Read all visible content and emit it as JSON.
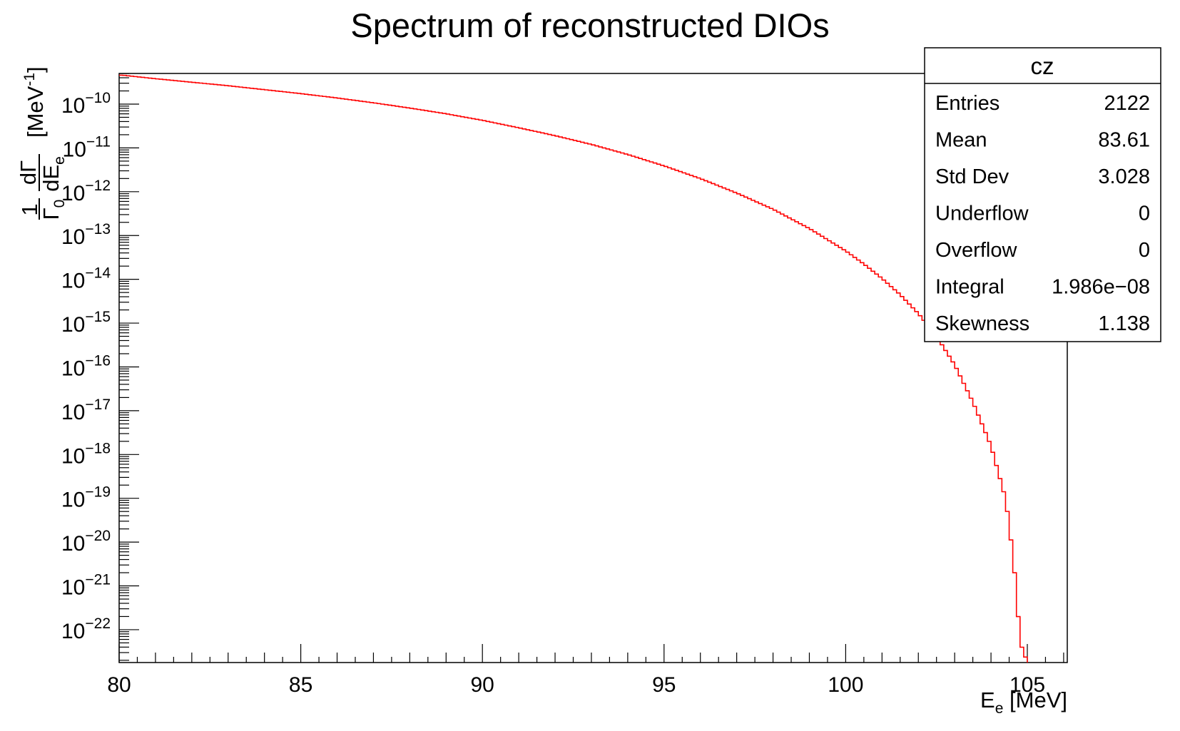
{
  "chart_data": {
    "type": "histogram",
    "title": "Spectrum of reconstructed  DIOs",
    "xlabel": {
      "main": "E",
      "sub": "e",
      "unit": " [MeV]"
    },
    "ylabel": {
      "frac_num": "1",
      "frac_den": "Γ",
      "frac_den_sub": "0",
      "deriv_num": "dΓ",
      "deriv_den": "dE",
      "deriv_den_sub": "e",
      "unit_open": "[MeV",
      "unit_sup": "-1",
      "unit_close": "]"
    },
    "xlim": [
      80,
      106.1
    ],
    "ylim_log10": [
      -22.75,
      -9.3
    ],
    "log_y": true,
    "line_color": "#ff0000",
    "x_ticks": [
      80,
      85,
      90,
      95,
      100,
      105
    ],
    "x_tick_labels": [
      "80",
      "85",
      "90",
      "95",
      "100",
      "105"
    ],
    "y_tick_exponents": [
      -10,
      -11,
      -12,
      -13,
      -14,
      -15,
      -16,
      -17,
      -18,
      -19,
      -20,
      -21,
      -22
    ],
    "y_tick_base": "10",
    "bin_width": 0.1,
    "series": [
      {
        "x": [
          80,
          80.1,
          81,
          82,
          83,
          84,
          85,
          86,
          87,
          88,
          89,
          90,
          91,
          92,
          93,
          94,
          95,
          96,
          97,
          98,
          99,
          100,
          100.5,
          101,
          101.5,
          102,
          102.5,
          103,
          103.5,
          104,
          104.2,
          104.4,
          104.5,
          104.6,
          104.7,
          104.8,
          104.9,
          105.0
        ],
        "log10_y": [
          -9.34,
          -9.34,
          -9.42,
          -9.5,
          -9.58,
          -9.67,
          -9.76,
          -9.86,
          -9.97,
          -10.09,
          -10.22,
          -10.37,
          -10.54,
          -10.72,
          -10.92,
          -11.15,
          -11.41,
          -11.7,
          -12.03,
          -12.4,
          -12.84,
          -13.35,
          -13.65,
          -13.98,
          -14.35,
          -14.78,
          -15.3,
          -15.95,
          -16.8,
          -17.8,
          -18.4,
          -19.0,
          -19.6,
          -20.3,
          -21.1,
          -22.3,
          -22.5,
          -22.75
        ]
      }
    ],
    "stats_box": {
      "name": "cz",
      "rows": [
        {
          "label": "Entries",
          "value": "2122"
        },
        {
          "label": "Mean",
          "value": "83.61"
        },
        {
          "label": "Std Dev",
          "value": "3.028"
        },
        {
          "label": "Underflow",
          "value": "0"
        },
        {
          "label": "Overflow",
          "value": "0"
        },
        {
          "label": "Integral",
          "value": "1.986e−08"
        },
        {
          "label": "Skewness",
          "value": "1.138"
        }
      ]
    }
  }
}
